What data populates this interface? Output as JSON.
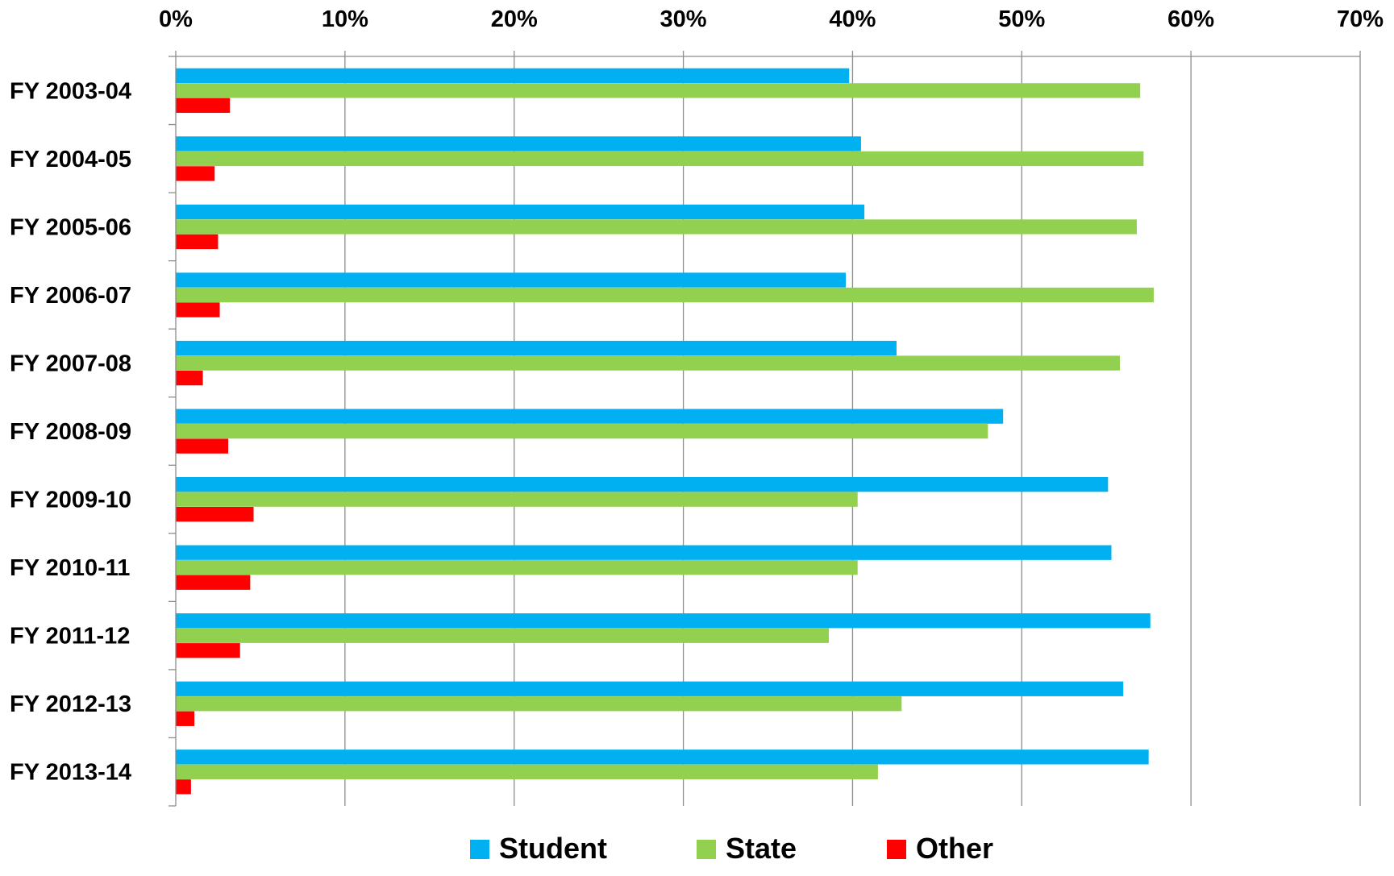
{
  "chart_data": {
    "type": "bar",
    "orientation": "horizontal",
    "categories": [
      "FY 2003-04",
      "FY 2004-05",
      "FY 2005-06",
      "FY 2006-07",
      "FY 2007-08",
      "FY 2008-09",
      "FY 2009-10",
      "FY 2010-11",
      "FY 2011-12",
      "FY 2012-13",
      "FY 2013-14"
    ],
    "series": [
      {
        "name": "Student",
        "color": "#00B0F0",
        "values": [
          39.8,
          40.5,
          40.7,
          39.6,
          42.6,
          48.9,
          55.1,
          55.3,
          57.6,
          56.0,
          57.5
        ]
      },
      {
        "name": "State",
        "color": "#92D050",
        "values": [
          57.0,
          57.2,
          56.8,
          57.8,
          55.8,
          48.0,
          40.3,
          40.3,
          38.6,
          42.9,
          41.5
        ]
      },
      {
        "name": "Other",
        "color": "#FF0000",
        "values": [
          3.2,
          2.3,
          2.5,
          2.6,
          1.6,
          3.1,
          4.6,
          4.4,
          3.8,
          1.1,
          0.9
        ]
      }
    ],
    "xlim": [
      0,
      70
    ],
    "x_ticks": [
      "0%",
      "10%",
      "20%",
      "30%",
      "40%",
      "50%",
      "60%",
      "70%"
    ],
    "x_tick_values": [
      0,
      10,
      20,
      30,
      40,
      50,
      60,
      70
    ],
    "x_axis_position": "top",
    "grid": true,
    "legend_position": "bottom",
    "title": "",
    "xlabel": "",
    "ylabel": ""
  }
}
